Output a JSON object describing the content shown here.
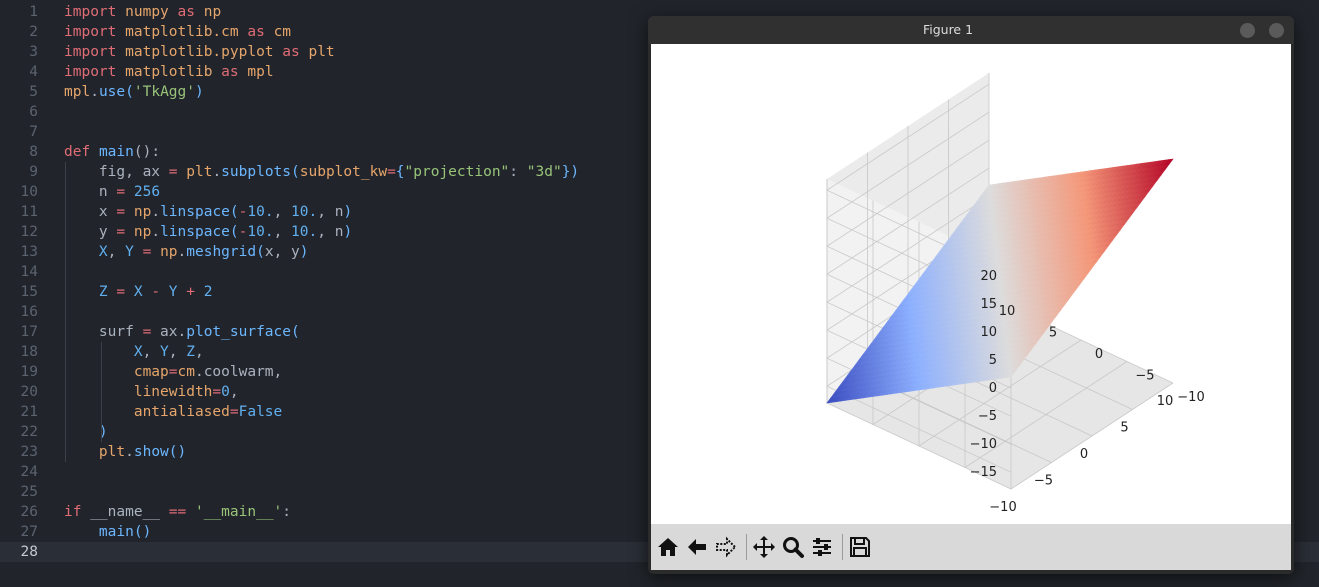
{
  "editor": {
    "current_line": "28",
    "lines": [
      {
        "n": "1",
        "tokens": [
          [
            "kw",
            "import"
          ],
          [
            "pun",
            " "
          ],
          [
            "mod",
            "numpy"
          ],
          [
            "pun",
            " "
          ],
          [
            "kw",
            "as"
          ],
          [
            "pun",
            " "
          ],
          [
            "mod",
            "np"
          ]
        ]
      },
      {
        "n": "2",
        "tokens": [
          [
            "kw",
            "import"
          ],
          [
            "pun",
            " "
          ],
          [
            "mod",
            "matplotlib.cm"
          ],
          [
            "pun",
            " "
          ],
          [
            "kw",
            "as"
          ],
          [
            "pun",
            " "
          ],
          [
            "mod",
            "cm"
          ]
        ]
      },
      {
        "n": "3",
        "tokens": [
          [
            "kw",
            "import"
          ],
          [
            "pun",
            " "
          ],
          [
            "mod",
            "matplotlib.pyplot"
          ],
          [
            "pun",
            " "
          ],
          [
            "kw",
            "as"
          ],
          [
            "pun",
            " "
          ],
          [
            "mod",
            "plt"
          ]
        ]
      },
      {
        "n": "4",
        "tokens": [
          [
            "kw",
            "import"
          ],
          [
            "pun",
            " "
          ],
          [
            "mod",
            "matplotlib"
          ],
          [
            "pun",
            " "
          ],
          [
            "kw",
            "as"
          ],
          [
            "pun",
            " "
          ],
          [
            "mod",
            "mpl"
          ]
        ]
      },
      {
        "n": "5",
        "tokens": [
          [
            "mod",
            "mpl"
          ],
          [
            "pun",
            "."
          ],
          [
            "fn",
            "use"
          ],
          [
            "fn",
            "("
          ],
          [
            "str",
            "'TkAgg'"
          ],
          [
            "fn",
            ")"
          ]
        ]
      },
      {
        "n": "6",
        "tokens": []
      },
      {
        "n": "7",
        "tokens": []
      },
      {
        "n": "8",
        "tokens": [
          [
            "kw",
            "def"
          ],
          [
            "pun",
            " "
          ],
          [
            "fn",
            "main"
          ],
          [
            "pun",
            "():"
          ]
        ]
      },
      {
        "n": "9",
        "tokens": [
          [
            "pun",
            "    fig, ax "
          ],
          [
            "op",
            "="
          ],
          [
            "pun",
            " "
          ],
          [
            "mod",
            "plt"
          ],
          [
            "pun",
            "."
          ],
          [
            "fn",
            "subplots"
          ],
          [
            "fn",
            "("
          ],
          [
            "mod",
            "subplot_kw"
          ],
          [
            "op",
            "="
          ],
          [
            "fn",
            "{"
          ],
          [
            "str",
            "\"projection\""
          ],
          [
            "pun",
            ": "
          ],
          [
            "str",
            "\"3d\""
          ],
          [
            "fn",
            "})"
          ]
        ]
      },
      {
        "n": "10",
        "tokens": [
          [
            "pun",
            "    n "
          ],
          [
            "op",
            "="
          ],
          [
            "pun",
            " "
          ],
          [
            "num",
            "256"
          ]
        ]
      },
      {
        "n": "11",
        "tokens": [
          [
            "pun",
            "    x "
          ],
          [
            "op",
            "="
          ],
          [
            "pun",
            " "
          ],
          [
            "mod",
            "np"
          ],
          [
            "pun",
            "."
          ],
          [
            "fn",
            "linspace"
          ],
          [
            "fn",
            "("
          ],
          [
            "op",
            "-"
          ],
          [
            "num",
            "10."
          ],
          [
            "pun",
            ", "
          ],
          [
            "num",
            "10."
          ],
          [
            "pun",
            ", n"
          ],
          [
            "fn",
            ")"
          ]
        ]
      },
      {
        "n": "12",
        "tokens": [
          [
            "pun",
            "    y "
          ],
          [
            "op",
            "="
          ],
          [
            "pun",
            " "
          ],
          [
            "mod",
            "np"
          ],
          [
            "pun",
            "."
          ],
          [
            "fn",
            "linspace"
          ],
          [
            "fn",
            "("
          ],
          [
            "op",
            "-"
          ],
          [
            "num",
            "10."
          ],
          [
            "pun",
            ", "
          ],
          [
            "num",
            "10."
          ],
          [
            "pun",
            ", n"
          ],
          [
            "fn",
            ")"
          ]
        ]
      },
      {
        "n": "13",
        "tokens": [
          [
            "pun",
            "    "
          ],
          [
            "var",
            "X"
          ],
          [
            "pun",
            ", "
          ],
          [
            "var",
            "Y"
          ],
          [
            "pun",
            " "
          ],
          [
            "op",
            "="
          ],
          [
            "pun",
            " "
          ],
          [
            "mod",
            "np"
          ],
          [
            "pun",
            "."
          ],
          [
            "fn",
            "meshgrid"
          ],
          [
            "fn",
            "("
          ],
          [
            "pun",
            "x, y"
          ],
          [
            "fn",
            ")"
          ]
        ]
      },
      {
        "n": "14",
        "tokens": []
      },
      {
        "n": "15",
        "tokens": [
          [
            "pun",
            "    "
          ],
          [
            "var",
            "Z"
          ],
          [
            "pun",
            " "
          ],
          [
            "op",
            "="
          ],
          [
            "pun",
            " "
          ],
          [
            "var",
            "X"
          ],
          [
            "pun",
            " "
          ],
          [
            "op",
            "-"
          ],
          [
            "pun",
            " "
          ],
          [
            "var",
            "Y"
          ],
          [
            "pun",
            " "
          ],
          [
            "op",
            "+"
          ],
          [
            "pun",
            " "
          ],
          [
            "num",
            "2"
          ]
        ]
      },
      {
        "n": "16",
        "tokens": []
      },
      {
        "n": "17",
        "tokens": [
          [
            "pun",
            "    surf "
          ],
          [
            "op",
            "="
          ],
          [
            "pun",
            " ax."
          ],
          [
            "fn",
            "plot_surface"
          ],
          [
            "fn",
            "("
          ]
        ]
      },
      {
        "n": "18",
        "tokens": [
          [
            "pun",
            "        "
          ],
          [
            "var",
            "X"
          ],
          [
            "pun",
            ", "
          ],
          [
            "var",
            "Y"
          ],
          [
            "pun",
            ", "
          ],
          [
            "var",
            "Z"
          ],
          [
            "pun",
            ","
          ]
        ]
      },
      {
        "n": "19",
        "tokens": [
          [
            "pun",
            "        "
          ],
          [
            "mod",
            "cmap"
          ],
          [
            "op",
            "="
          ],
          [
            "mod",
            "cm"
          ],
          [
            "pun",
            ".coolwarm,"
          ]
        ]
      },
      {
        "n": "20",
        "tokens": [
          [
            "pun",
            "        "
          ],
          [
            "mod",
            "linewidth"
          ],
          [
            "op",
            "="
          ],
          [
            "num",
            "0"
          ],
          [
            "pun",
            ","
          ]
        ]
      },
      {
        "n": "21",
        "tokens": [
          [
            "pun",
            "        "
          ],
          [
            "mod",
            "antialiased"
          ],
          [
            "op",
            "="
          ],
          [
            "num",
            "False"
          ]
        ]
      },
      {
        "n": "22",
        "tokens": [
          [
            "pun",
            "    "
          ],
          [
            "fn",
            ")"
          ]
        ]
      },
      {
        "n": "23",
        "tokens": [
          [
            "pun",
            "    "
          ],
          [
            "mod",
            "plt"
          ],
          [
            "pun",
            "."
          ],
          [
            "fn",
            "show"
          ],
          [
            "fn",
            "()"
          ]
        ]
      },
      {
        "n": "24",
        "tokens": []
      },
      {
        "n": "25",
        "tokens": []
      },
      {
        "n": "26",
        "tokens": [
          [
            "kw",
            "if"
          ],
          [
            "pun",
            " __name__ "
          ],
          [
            "op",
            "=="
          ],
          [
            "pun",
            " "
          ],
          [
            "str",
            "'__main__'"
          ],
          [
            "pun",
            ":"
          ]
        ]
      },
      {
        "n": "27",
        "tokens": [
          [
            "pun",
            "    "
          ],
          [
            "fn",
            "main"
          ],
          [
            "fn",
            "()"
          ]
        ]
      },
      {
        "n": "28",
        "tokens": []
      }
    ]
  },
  "figure_window": {
    "title": "Figure 1",
    "toolbar": [
      {
        "name": "home-icon",
        "label": "Home"
      },
      {
        "name": "back-arrow-icon",
        "label": "Back"
      },
      {
        "name": "forward-arrow-icon",
        "label": "Forward"
      },
      {
        "name": "pan-icon",
        "label": "Pan"
      },
      {
        "name": "zoom-icon",
        "label": "Zoom"
      },
      {
        "name": "configure-subplots-icon",
        "label": "Subplots"
      },
      {
        "name": "save-icon",
        "label": "Save"
      }
    ]
  },
  "chart_data": {
    "type": "surface3d",
    "function": "Z = X - Y + 2",
    "colormap": "coolwarm",
    "x_range": [
      -10,
      10
    ],
    "y_range": [
      -10,
      10
    ],
    "z_range": [
      -18,
      22
    ],
    "x_ticks": [
      "−10",
      "−5",
      "0",
      "5",
      "10"
    ],
    "y_ticks": [
      "−10",
      "−5",
      "0",
      "5",
      "10"
    ],
    "z_ticks": [
      "−15",
      "−10",
      "−5",
      "0",
      "5",
      "10",
      "15",
      "20"
    ],
    "grid": true,
    "colors": {
      "low": "#3b4cc0",
      "mid": "#dddddd",
      "high": "#b40426"
    }
  }
}
